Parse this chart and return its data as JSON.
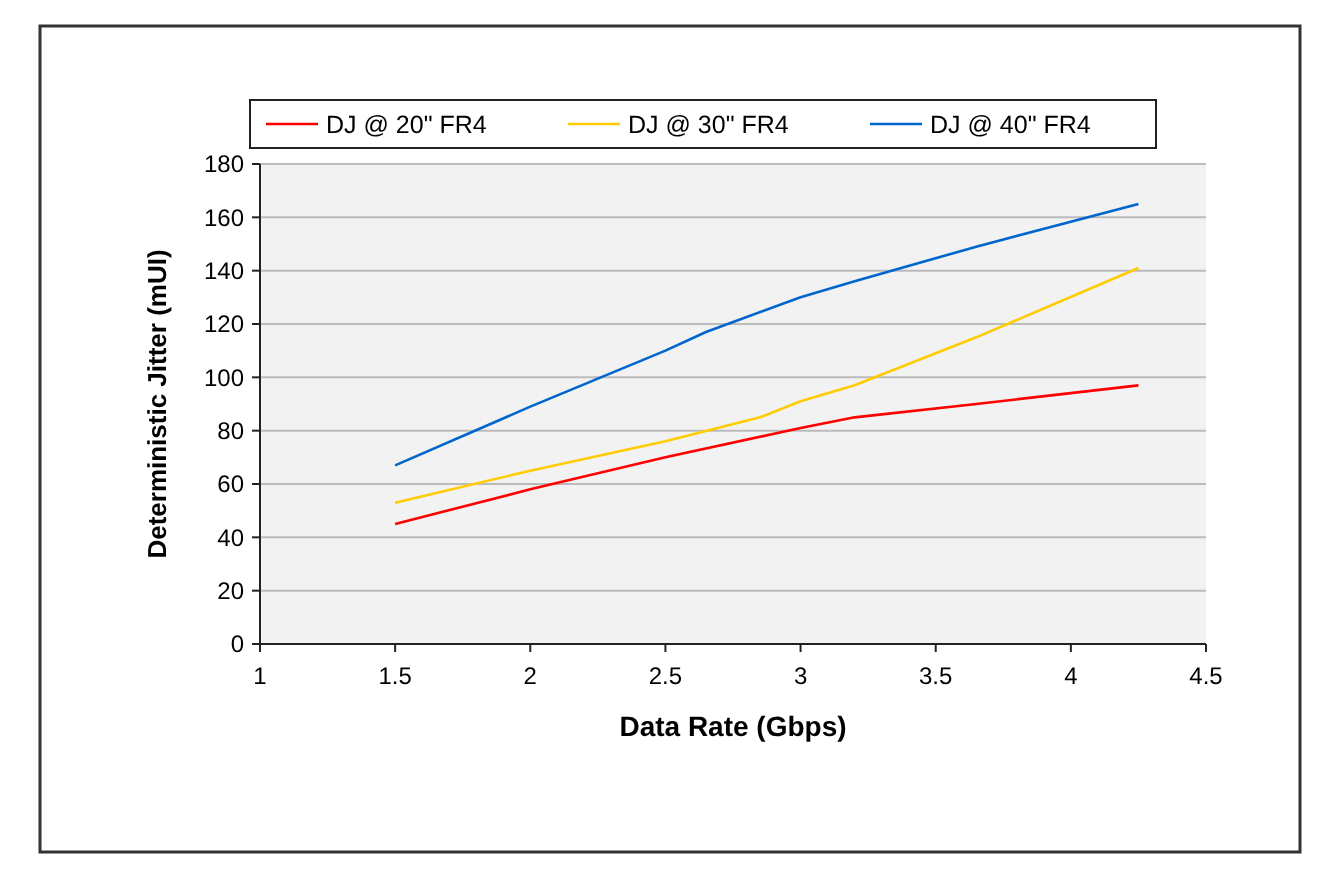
{
  "chart_data": {
    "type": "line",
    "xlabel": "Data Rate (Gbps)",
    "ylabel": "Deterministic Jitter (mUI)",
    "xlim": [
      1,
      4.5
    ],
    "xticks": [
      1,
      1.5,
      2,
      2.5,
      3,
      3.5,
      4,
      4.5
    ],
    "ylim": [
      0,
      180
    ],
    "yticks": [
      0,
      20,
      40,
      60,
      80,
      100,
      120,
      140,
      160,
      180
    ],
    "grid": "y",
    "legend": "top",
    "marker": "none",
    "line_style": "solid",
    "series": [
      {
        "name": "DJ @ 20\" FR4",
        "color": "#ff0000",
        "x": [
          1.5,
          2,
          2.5,
          3,
          3.2,
          3.65,
          4.25
        ],
        "values": [
          45,
          58,
          70,
          81,
          85,
          90,
          97
        ]
      },
      {
        "name": "DJ @ 30\" FR4",
        "color": "#ffcc00",
        "x": [
          1.5,
          2,
          2.5,
          2.85,
          3,
          3.2,
          3.65,
          4.25
        ],
        "values": [
          53,
          65,
          76,
          85,
          91,
          97,
          115,
          141
        ]
      },
      {
        "name": "DJ @ 40\" FR4",
        "color": "#0066cc",
        "x": [
          1.5,
          2,
          2.5,
          2.65,
          3,
          3.2,
          3.65,
          4.25
        ],
        "values": [
          67,
          89,
          110,
          117,
          130,
          136,
          149,
          165
        ]
      }
    ]
  }
}
